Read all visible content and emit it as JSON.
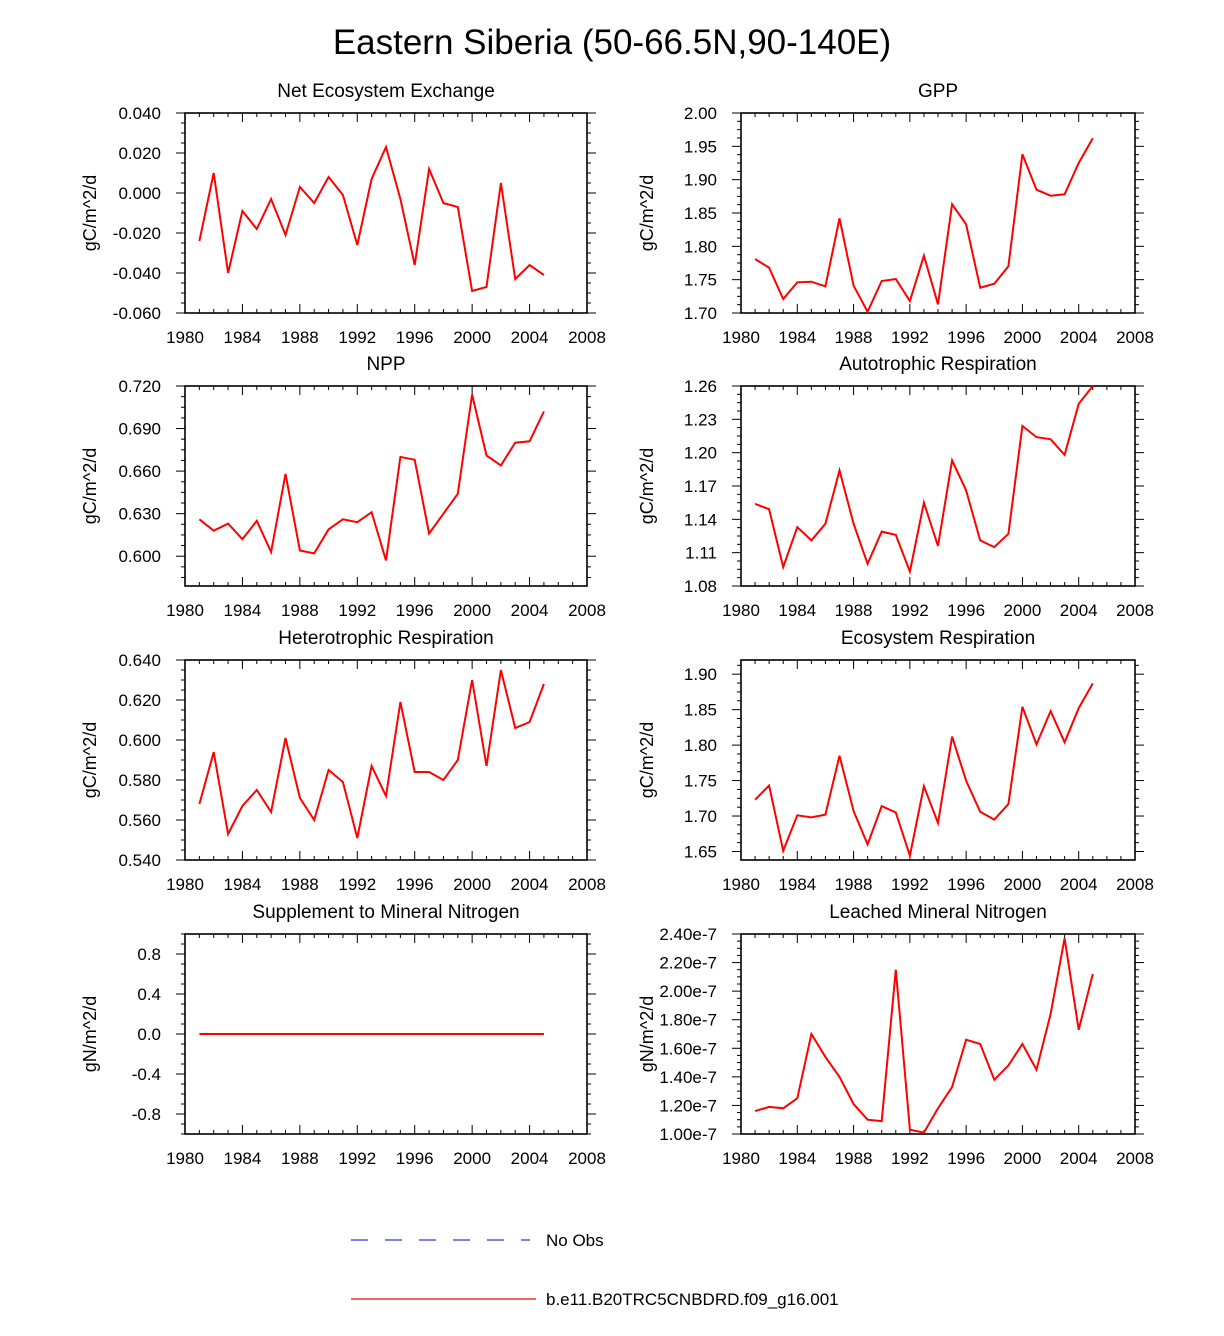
{
  "figure": {
    "title": "Eastern Siberia (50-66.5N,90-140E)"
  },
  "legend": {
    "entries": [
      {
        "label": "No Obs",
        "color": "#3333dd",
        "style": "dashed"
      },
      {
        "label": "b.e11.B20TRC5CNBDRD.f09_g16.001",
        "color": "#ff0000",
        "style": "solid"
      }
    ]
  },
  "chart_data": [
    {
      "type": "line",
      "title": "Net Ecosystem Exchange",
      "ylabel": "gC/m^2/d",
      "xlabel": "",
      "xlim": [
        1980,
        2008
      ],
      "ylim": [
        -0.06,
        0.04
      ],
      "xticks": [
        1980,
        1984,
        1988,
        1992,
        1996,
        2000,
        2004,
        2008
      ],
      "yticks": [
        -0.06,
        -0.04,
        -0.02,
        0.0,
        0.02,
        0.04
      ],
      "ytick_labels": [
        "-0.060",
        "-0.040",
        "-0.020",
        "0.000",
        "0.020",
        "0.040"
      ],
      "x": [
        1981,
        1982,
        1983,
        1984,
        1985,
        1986,
        1987,
        1988,
        1989,
        1990,
        1991,
        1992,
        1993,
        1994,
        1995,
        1996,
        1997,
        1998,
        1999,
        2000,
        2001,
        2002,
        2003,
        2004,
        2005
      ],
      "series": [
        {
          "name": "b.e11.B20TRC5CNBDRD.f09_g16.001",
          "color": "#ff0000",
          "values": [
            -0.024,
            0.01,
            -0.04,
            -0.009,
            -0.018,
            -0.003,
            -0.021,
            0.003,
            -0.005,
            0.008,
            -0.001,
            -0.026,
            0.007,
            0.023,
            -0.003,
            -0.036,
            0.012,
            -0.005,
            -0.007,
            -0.049,
            -0.047,
            0.005,
            -0.043,
            -0.036,
            -0.041
          ]
        }
      ]
    },
    {
      "type": "line",
      "title": "GPP",
      "ylabel": "gC/m^2/d",
      "xlabel": "",
      "xlim": [
        1980,
        2008
      ],
      "ylim": [
        1.7,
        2.0
      ],
      "xticks": [
        1980,
        1984,
        1988,
        1992,
        1996,
        2000,
        2004,
        2008
      ],
      "yticks": [
        1.7,
        1.75,
        1.8,
        1.85,
        1.9,
        1.95,
        2.0
      ],
      "ytick_labels": [
        "1.70",
        "1.75",
        "1.80",
        "1.85",
        "1.90",
        "1.95",
        "2.00"
      ],
      "x": [
        1981,
        1982,
        1983,
        1984,
        1985,
        1986,
        1987,
        1988,
        1989,
        1990,
        1991,
        1992,
        1993,
        1994,
        1995,
        1996,
        1997,
        1998,
        1999,
        2000,
        2001,
        2002,
        2003,
        2004,
        2005
      ],
      "series": [
        {
          "name": "b.e11.B20TRC5CNBDRD.f09_g16.001",
          "color": "#ff0000",
          "values": [
            1.781,
            1.768,
            1.721,
            1.746,
            1.747,
            1.74,
            1.842,
            1.741,
            1.702,
            1.748,
            1.751,
            1.718,
            1.786,
            1.713,
            1.863,
            1.833,
            1.738,
            1.744,
            1.77,
            1.938,
            1.885,
            1.876,
            1.878,
            1.925,
            1.962
          ]
        }
      ]
    },
    {
      "type": "line",
      "title": "NPP",
      "ylabel": "gC/m^2/d",
      "xlabel": "",
      "xlim": [
        1980,
        2008
      ],
      "ylim": [
        0.579,
        0.72
      ],
      "xticks": [
        1980,
        1984,
        1988,
        1992,
        1996,
        2000,
        2004,
        2008
      ],
      "yticks": [
        0.6,
        0.63,
        0.66,
        0.69,
        0.72
      ],
      "ytick_labels": [
        "0.600",
        "0.630",
        "0.660",
        "0.690",
        "0.720"
      ],
      "x": [
        1981,
        1982,
        1983,
        1984,
        1985,
        1986,
        1987,
        1988,
        1989,
        1990,
        1991,
        1992,
        1993,
        1994,
        1995,
        1996,
        1997,
        1998,
        1999,
        2000,
        2001,
        2002,
        2003,
        2004,
        2005
      ],
      "series": [
        {
          "name": "b.e11.B20TRC5CNBDRD.f09_g16.001",
          "color": "#ff0000",
          "values": [
            0.626,
            0.618,
            0.623,
            0.612,
            0.625,
            0.603,
            0.658,
            0.604,
            0.602,
            0.619,
            0.626,
            0.624,
            0.631,
            0.597,
            0.67,
            0.668,
            0.616,
            0.63,
            0.644,
            0.714,
            0.671,
            0.664,
            0.68,
            0.681,
            0.702
          ]
        }
      ]
    },
    {
      "type": "line",
      "title": "Autotrophic Respiration",
      "ylabel": "gC/m^2/d",
      "xlabel": "",
      "xlim": [
        1980,
        2008
      ],
      "ylim": [
        1.08,
        1.26
      ],
      "xticks": [
        1980,
        1984,
        1988,
        1992,
        1996,
        2000,
        2004,
        2008
      ],
      "yticks": [
        1.08,
        1.11,
        1.14,
        1.17,
        1.2,
        1.23,
        1.26
      ],
      "ytick_labels": [
        "1.08",
        "1.11",
        "1.14",
        "1.17",
        "1.20",
        "1.23",
        "1.26"
      ],
      "x": [
        1981,
        1982,
        1983,
        1984,
        1985,
        1986,
        1987,
        1988,
        1989,
        1990,
        1991,
        1992,
        1993,
        1994,
        1995,
        1996,
        1997,
        1998,
        1999,
        2000,
        2001,
        2002,
        2003,
        2004,
        2005
      ],
      "series": [
        {
          "name": "b.e11.B20TRC5CNBDRD.f09_g16.001",
          "color": "#ff0000",
          "values": [
            1.154,
            1.149,
            1.097,
            1.133,
            1.121,
            1.136,
            1.184,
            1.136,
            1.1,
            1.129,
            1.126,
            1.093,
            1.155,
            1.116,
            1.193,
            1.166,
            1.121,
            1.115,
            1.127,
            1.224,
            1.214,
            1.212,
            1.198,
            1.244,
            1.26
          ]
        }
      ]
    },
    {
      "type": "line",
      "title": "Heterotrophic Respiration",
      "ylabel": "gC/m^2/d",
      "xlabel": "",
      "xlim": [
        1980,
        2008
      ],
      "ylim": [
        0.54,
        0.64
      ],
      "xticks": [
        1980,
        1984,
        1988,
        1992,
        1996,
        2000,
        2004,
        2008
      ],
      "yticks": [
        0.54,
        0.56,
        0.58,
        0.6,
        0.62,
        0.64
      ],
      "ytick_labels": [
        "0.540",
        "0.560",
        "0.580",
        "0.600",
        "0.620",
        "0.640"
      ],
      "x": [
        1981,
        1982,
        1983,
        1984,
        1985,
        1986,
        1987,
        1988,
        1989,
        1990,
        1991,
        1992,
        1993,
        1994,
        1995,
        1996,
        1997,
        1998,
        1999,
        2000,
        2001,
        2002,
        2003,
        2004,
        2005
      ],
      "series": [
        {
          "name": "b.e11.B20TRC5CNBDRD.f09_g16.001",
          "color": "#ff0000",
          "values": [
            0.568,
            0.594,
            0.553,
            0.567,
            0.575,
            0.564,
            0.601,
            0.571,
            0.56,
            0.585,
            0.579,
            0.551,
            0.587,
            0.572,
            0.619,
            0.584,
            0.584,
            0.58,
            0.59,
            0.63,
            0.587,
            0.635,
            0.606,
            0.609,
            0.628
          ]
        }
      ]
    },
    {
      "type": "line",
      "title": "Ecosystem Respiration",
      "ylabel": "gC/m^2/d",
      "xlabel": "",
      "xlim": [
        1980,
        2008
      ],
      "ylim": [
        1.638,
        1.92
      ],
      "xticks": [
        1980,
        1984,
        1988,
        1992,
        1996,
        2000,
        2004,
        2008
      ],
      "yticks": [
        1.65,
        1.7,
        1.75,
        1.8,
        1.85,
        1.9
      ],
      "ytick_labels": [
        "1.65",
        "1.70",
        "1.75",
        "1.80",
        "1.85",
        "1.90"
      ],
      "x": [
        1981,
        1982,
        1983,
        1984,
        1985,
        1986,
        1987,
        1988,
        1989,
        1990,
        1991,
        1992,
        1993,
        1994,
        1995,
        1996,
        1997,
        1998,
        1999,
        2000,
        2001,
        2002,
        2003,
        2004,
        2005
      ],
      "series": [
        {
          "name": "b.e11.B20TRC5CNBDRD.f09_g16.001",
          "color": "#ff0000",
          "values": [
            1.723,
            1.743,
            1.651,
            1.701,
            1.698,
            1.702,
            1.785,
            1.707,
            1.66,
            1.714,
            1.705,
            1.644,
            1.742,
            1.69,
            1.812,
            1.75,
            1.706,
            1.695,
            1.717,
            1.854,
            1.801,
            1.848,
            1.804,
            1.852,
            1.887
          ]
        }
      ]
    },
    {
      "type": "line",
      "title": "Supplement to Mineral Nitrogen",
      "ylabel": "gN/m^2/d",
      "xlabel": "",
      "xlim": [
        1980,
        2008
      ],
      "ylim": [
        -1.0,
        1.0
      ],
      "xticks": [
        1980,
        1984,
        1988,
        1992,
        1996,
        2000,
        2004,
        2008
      ],
      "yticks": [
        -0.8,
        -0.4,
        0.0,
        0.4,
        0.8
      ],
      "ytick_labels": [
        "-0.8",
        "-0.4",
        "0.0",
        "0.4",
        "0.8"
      ],
      "x": [
        1981,
        1982,
        1983,
        1984,
        1985,
        1986,
        1987,
        1988,
        1989,
        1990,
        1991,
        1992,
        1993,
        1994,
        1995,
        1996,
        1997,
        1998,
        1999,
        2000,
        2001,
        2002,
        2003,
        2004,
        2005
      ],
      "series": [
        {
          "name": "b.e11.B20TRC5CNBDRD.f09_g16.001",
          "color": "#ff0000",
          "values": [
            0,
            0,
            0,
            0,
            0,
            0,
            0,
            0,
            0,
            0,
            0,
            0,
            0,
            0,
            0,
            0,
            0,
            0,
            0,
            0,
            0,
            0,
            0,
            0,
            0
          ]
        }
      ]
    },
    {
      "type": "line",
      "title": "Leached Mineral Nitrogen",
      "ylabel": "gN/m^2/d",
      "xlabel": "",
      "xlim": [
        1980,
        2008
      ],
      "ylim": [
        1e-07,
        2.4e-07
      ],
      "xticks": [
        1980,
        1984,
        1988,
        1992,
        1996,
        2000,
        2004,
        2008
      ],
      "yticks": [
        1e-07,
        1.2e-07,
        1.4e-07,
        1.6e-07,
        1.8e-07,
        2e-07,
        2.2e-07,
        2.4e-07
      ],
      "ytick_labels": [
        "1.00e-7",
        "1.20e-7",
        "1.40e-7",
        "1.60e-7",
        "1.80e-7",
        "2.00e-7",
        "2.20e-7",
        "2.40e-7"
      ],
      "x": [
        1981,
        1982,
        1983,
        1984,
        1985,
        1986,
        1987,
        1988,
        1989,
        1990,
        1991,
        1992,
        1993,
        1994,
        1995,
        1996,
        1997,
        1998,
        1999,
        2000,
        2001,
        2002,
        2003,
        2004,
        2005
      ],
      "series": [
        {
          "name": "b.e11.B20TRC5CNBDRD.f09_g16.001",
          "color": "#ff0000",
          "values": [
            1.16e-07,
            1.19e-07,
            1.18e-07,
            1.25e-07,
            1.7e-07,
            1.54e-07,
            1.4e-07,
            1.21e-07,
            1.1e-07,
            1.09e-07,
            2.15e-07,
            1.03e-07,
            1.01e-07,
            1.18e-07,
            1.33e-07,
            1.66e-07,
            1.63e-07,
            1.38e-07,
            1.48e-07,
            1.63e-07,
            1.45e-07,
            1.84e-07,
            2.37e-07,
            1.73e-07,
            2.12e-07
          ]
        }
      ]
    }
  ]
}
